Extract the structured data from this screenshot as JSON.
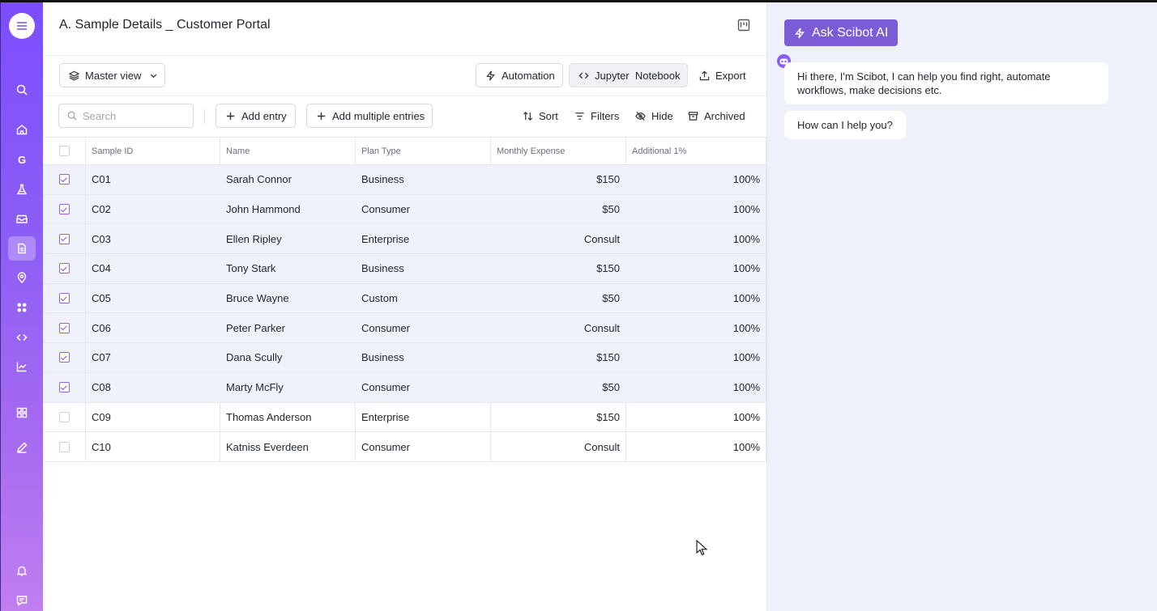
{
  "header": {
    "title": "A. Sample Details _ Customer Portal"
  },
  "toolbar": {
    "view_label": "Master view",
    "automation_label": "Automation",
    "jupyter_label": "Jupyter  Notebook",
    "export_label": "Export"
  },
  "actions": {
    "search_placeholder": "Search",
    "add_entry_label": "Add entry",
    "add_multiple_label": "Add multiple entries",
    "sort_label": "Sort",
    "filters_label": "Filters",
    "hide_label": "Hide",
    "archived_label": "Archived"
  },
  "sidebar": {
    "items": [
      {
        "icon": "search-icon"
      },
      {
        "icon": "home-icon"
      },
      {
        "icon": "g-letter-icon",
        "letter": "G"
      },
      {
        "icon": "flask-icon"
      },
      {
        "icon": "inbox-icon"
      },
      {
        "icon": "document-icon",
        "active": true
      },
      {
        "icon": "location-pin-icon"
      },
      {
        "icon": "apps-icon"
      },
      {
        "icon": "code-icon"
      },
      {
        "icon": "chart-icon"
      },
      {
        "icon": "grid-icon"
      },
      {
        "icon": "pen-icon"
      },
      {
        "icon": "bell-icon"
      },
      {
        "icon": "chat-icon"
      }
    ]
  },
  "table": {
    "columns": [
      "Sample ID",
      "Name",
      "Plan Type",
      "Monthly Expense",
      "Additional 1%"
    ],
    "rows": [
      {
        "checked": true,
        "id": "C01",
        "name": "Sarah Connor",
        "plan": "Business",
        "expense": "$150",
        "additional": "100%"
      },
      {
        "checked": true,
        "id": "C02",
        "name": "John Hammond",
        "plan": "Consumer",
        "expense": "$50",
        "additional": "100%"
      },
      {
        "checked": true,
        "id": "C03",
        "name": "Ellen Ripley",
        "plan": "Enterprise",
        "expense": "Consult",
        "additional": "100%"
      },
      {
        "checked": true,
        "id": "C04",
        "name": "Tony Stark",
        "plan": "Business",
        "expense": "$150",
        "additional": "100%"
      },
      {
        "checked": true,
        "id": "C05",
        "name": "Bruce Wayne",
        "plan": "Custom",
        "expense": "$50",
        "additional": "100%"
      },
      {
        "checked": true,
        "id": "C06",
        "name": "Peter Parker",
        "plan": "Consumer",
        "expense": "Consult",
        "additional": "100%"
      },
      {
        "checked": true,
        "id": "C07",
        "name": "Dana Scully",
        "plan": "Business",
        "expense": "$150",
        "additional": "100%"
      },
      {
        "checked": true,
        "id": "C08",
        "name": "Marty McFly",
        "plan": "Consumer",
        "expense": "$50",
        "additional": "100%"
      },
      {
        "checked": false,
        "id": "C09",
        "name": "Thomas Anderson",
        "plan": "Enterprise",
        "expense": "$150",
        "additional": "100%"
      },
      {
        "checked": false,
        "id": "C10",
        "name": "Katniss Everdeen",
        "plan": "Consumer",
        "expense": "Consult",
        "additional": "100%"
      }
    ]
  },
  "assistant": {
    "button_label": "Ask Scibot AI",
    "messages": [
      "Hi there, I'm Scibot, I can help you find right, automate workflows, make decisions etc.",
      "How can I help you?"
    ]
  },
  "colors": {
    "sidebar_top": "#7c4dff",
    "sidebar_bottom": "#c07ef0",
    "accent": "#7b5bd6",
    "selected_row": "#f0f2fb",
    "panel_bg": "#eef1fa"
  }
}
